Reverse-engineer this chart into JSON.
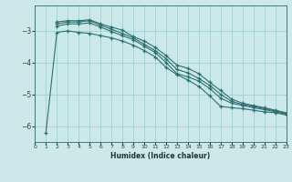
{
  "xlabel": "Humidex (Indice chaleur)",
  "bg_color": "#cce8e8",
  "grid_color": "#99cccc",
  "line_color": "#2d7070",
  "xlim": [
    0,
    23
  ],
  "ylim": [
    -6.5,
    -2.2
  ],
  "yticks": [
    -6,
    -5,
    -4,
    -3
  ],
  "xticks": [
    0,
    1,
    2,
    3,
    4,
    5,
    6,
    7,
    8,
    9,
    10,
    11,
    12,
    13,
    14,
    15,
    16,
    17,
    18,
    19,
    20,
    21,
    22,
    23
  ],
  "series": [
    {
      "x": [
        2,
        3,
        4,
        5,
        6,
        7,
        8,
        9,
        10,
        11,
        12,
        13,
        14,
        15,
        16,
        17,
        18,
        19,
        20,
        21,
        22,
        23
      ],
      "y": [
        -2.72,
        -2.68,
        -2.68,
        -2.65,
        -2.78,
        -2.88,
        -2.98,
        -3.18,
        -3.32,
        -3.52,
        -3.78,
        -4.08,
        -4.18,
        -4.35,
        -4.62,
        -4.88,
        -5.15,
        -5.28,
        -5.35,
        -5.42,
        -5.5,
        -5.58
      ]
    },
    {
      "x": [
        2,
        3,
        4,
        5,
        6,
        7,
        8,
        9,
        10,
        11,
        12,
        13,
        14,
        15,
        16,
        17,
        18,
        19,
        20,
        21,
        22,
        23
      ],
      "y": [
        -2.78,
        -2.72,
        -2.72,
        -2.68,
        -2.82,
        -2.95,
        -3.08,
        -3.22,
        -3.42,
        -3.62,
        -3.88,
        -4.22,
        -4.32,
        -4.5,
        -4.72,
        -5.0,
        -5.22,
        -5.32,
        -5.38,
        -5.45,
        -5.52,
        -5.6
      ]
    },
    {
      "x": [
        2,
        3,
        4,
        5,
        6,
        7,
        8,
        9,
        10,
        11,
        12,
        13,
        14,
        15,
        16,
        17,
        18,
        19,
        20,
        21,
        22,
        23
      ],
      "y": [
        -2.85,
        -2.78,
        -2.78,
        -2.75,
        -2.88,
        -3.02,
        -3.15,
        -3.28,
        -3.48,
        -3.68,
        -4.0,
        -4.35,
        -4.45,
        -4.58,
        -4.82,
        -5.12,
        -5.28,
        -5.35,
        -5.42,
        -5.48,
        -5.55,
        -5.62
      ]
    },
    {
      "x": [
        1,
        2,
        3,
        4,
        5,
        6,
        7,
        8,
        9,
        10,
        11,
        12,
        13,
        14,
        15,
        16,
        17,
        18,
        19,
        20,
        21,
        22,
        23
      ],
      "y": [
        -6.2,
        -3.05,
        -3.0,
        -3.05,
        -3.08,
        -3.15,
        -3.22,
        -3.32,
        -3.45,
        -3.62,
        -3.82,
        -4.15,
        -4.38,
        -4.55,
        -4.75,
        -5.05,
        -5.38,
        -5.42,
        -5.45,
        -5.5,
        -5.55,
        -5.58,
        -5.65
      ]
    }
  ]
}
